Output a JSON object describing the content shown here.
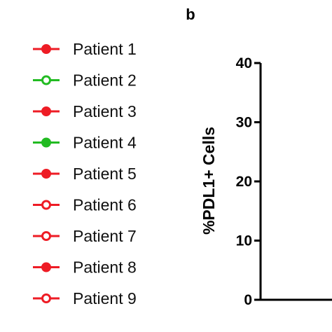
{
  "chart_data": {
    "type": "scatter",
    "panel_label": "b",
    "ylabel": "%PDL1+ Cells",
    "xlabel": "",
    "ylim": [
      0,
      40
    ],
    "yticks": [
      "0",
      "10",
      "20",
      "30",
      "40"
    ],
    "grid": false,
    "legend_placement": "left",
    "series": [
      {
        "name": "Patient 1",
        "color": "#ee1c25",
        "marker": "filled",
        "values": []
      },
      {
        "name": "Patient 2",
        "color": "#22bb22",
        "marker": "open",
        "values": []
      },
      {
        "name": "Patient 3",
        "color": "#ee1c25",
        "marker": "filled",
        "values": []
      },
      {
        "name": "Patient 4",
        "color": "#22bb22",
        "marker": "filled",
        "values": []
      },
      {
        "name": "Patient 5",
        "color": "#ee1c25",
        "marker": "filled",
        "values": []
      },
      {
        "name": "Patient 6",
        "color": "#ee1c25",
        "marker": "open",
        "values": []
      },
      {
        "name": "Patient 7",
        "color": "#ee1c25",
        "marker": "open",
        "values": []
      },
      {
        "name": "Patient 8",
        "color": "#ee1c25",
        "marker": "filled",
        "values": []
      },
      {
        "name": "Patient 9",
        "color": "#ee1c25",
        "marker": "open",
        "values": []
      }
    ]
  }
}
